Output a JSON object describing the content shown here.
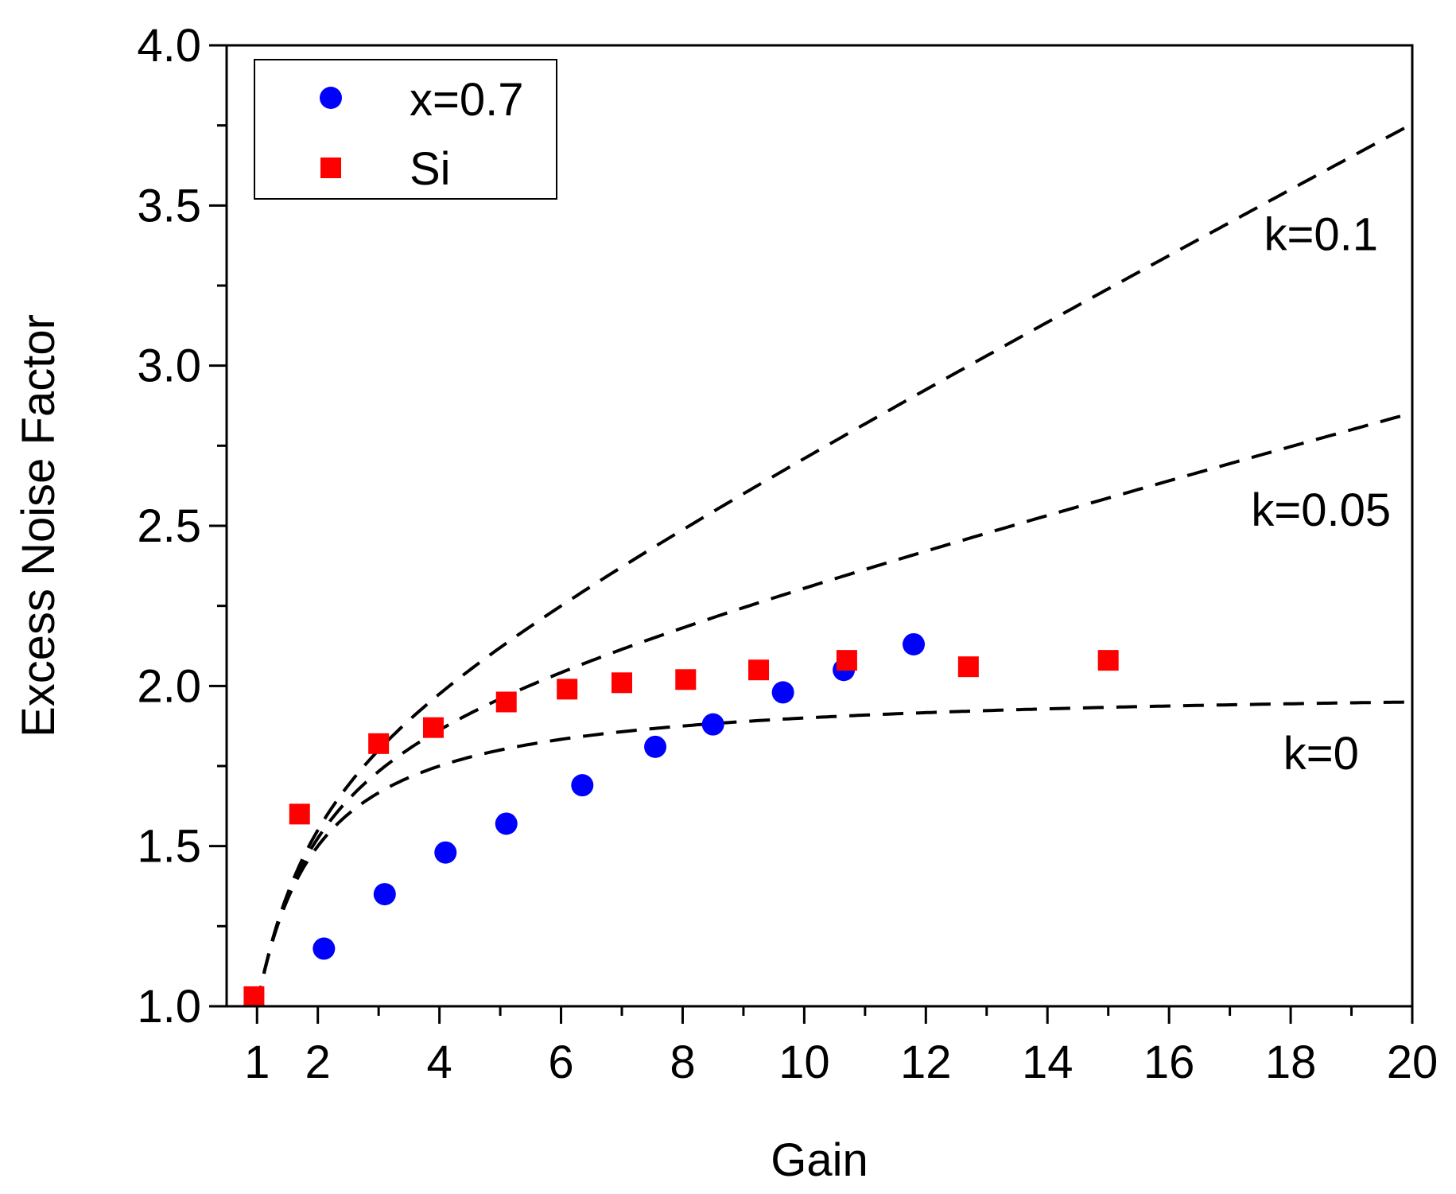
{
  "chart_data": {
    "type": "scatter",
    "title": "",
    "xlabel": "Gain",
    "ylabel": "Excess Noise Factor",
    "xlim": [
      0.5,
      20
    ],
    "ylim": [
      1.0,
      4.0
    ],
    "grid": false,
    "legend_position": "top-left",
    "x_ticks": [
      1,
      2,
      4,
      6,
      8,
      10,
      12,
      14,
      16,
      18,
      20
    ],
    "x_tick_labels": [
      "1",
      "2",
      "4",
      "6",
      "8",
      "10",
      "12",
      "14",
      "16",
      "18",
      "20"
    ],
    "y_ticks": [
      1.0,
      1.5,
      2.0,
      2.5,
      3.0,
      3.5,
      4.0
    ],
    "y_tick_labels": [
      "1.0",
      "1.5",
      "2.0",
      "2.5",
      "3.0",
      "3.5",
      "4.0"
    ],
    "series": [
      {
        "name": "x=0.7",
        "marker": "circle",
        "color": "#0000ff",
        "x": [
          2.1,
          3.1,
          4.1,
          5.1,
          6.35,
          7.55,
          8.5,
          9.65,
          10.65,
          11.8
        ],
        "y": [
          1.18,
          1.35,
          1.48,
          1.57,
          1.69,
          1.81,
          1.88,
          1.98,
          2.05,
          2.13
        ]
      },
      {
        "name": "Si",
        "marker": "square",
        "color": "#ff0000",
        "x": [
          0.95,
          1.7,
          3.0,
          3.9,
          5.1,
          6.1,
          7.0,
          8.05,
          9.25,
          10.7,
          12.7,
          15.0
        ],
        "y": [
          1.03,
          1.6,
          1.82,
          1.87,
          1.95,
          1.99,
          2.01,
          2.02,
          2.05,
          2.08,
          2.06,
          2.08
        ]
      }
    ],
    "model_curves": [
      {
        "label": "k=0.1",
        "k": 0.1,
        "label_x": 18.5,
        "label_y": 3.36
      },
      {
        "label": "k=0.05",
        "k": 0.05,
        "label_x": 18.5,
        "label_y": 2.5
      },
      {
        "label": "k=0",
        "k": 0.0,
        "label_x": 18.5,
        "label_y": 1.74
      }
    ],
    "model_curve_x_range": [
      1.0,
      20.0
    ]
  }
}
